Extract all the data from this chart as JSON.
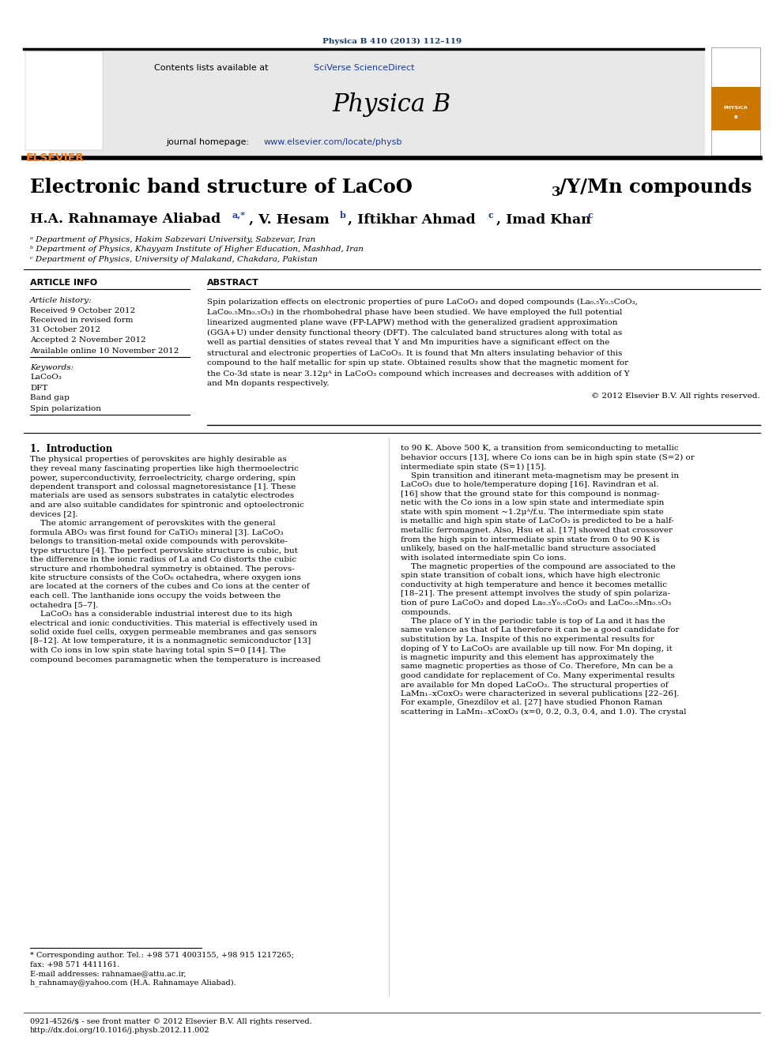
{
  "page_width": 9.92,
  "page_height": 13.23,
  "background_color": "#ffffff",
  "journal_ref": "Physica B 410 (2013) 112–119",
  "journal_ref_color": "#1a3a6b",
  "header_bg": "#e8e8e8",
  "section_article_info": "ARTICLE INFO",
  "section_abstract": "ABSTRACT",
  "article_history_label": "Article history:",
  "received1": "Received 9 October 2012",
  "received2": "Received in revised form",
  "received2b": "31 October 2012",
  "accepted": "Accepted 2 November 2012",
  "available": "Available online 10 November 2012",
  "keywords_label": "Keywords:",
  "kw1": "LaCoO₃",
  "kw2": "DFT",
  "kw3": "Band gap",
  "kw4": "Spin polarization",
  "abstract_text": "Spin polarization effects on electronic properties of pure LaCoO₃ and doped compounds (La₀.₅Y₀.₅CoO₃,\nLaCo₀.₅Mn₀.₅O₃) in the rhombohedral phase have been studied. We have employed the full potential\nlinearized augmented plane wave (FP-LAPW) method with the generalized gradient approximation\n(GGA+U) under density functional theory (DFT). The calculated band structures along with total as\nwell as partial densities of states reveal that Y and Mn impurities have a significant effect on the\nstructural and electronic properties of LaCoO₃. It is found that Mn alters insulating behavior of this\ncompound to the half metallic for spin up state. Obtained results show that the magnetic moment for\nthe Co-3d state is near 3.12μᴬ in LaCoO₃ compound which increases and decreases with addition of Y\nand Mn dopants respectively.",
  "copyright": "© 2012 Elsevier B.V. All rights reserved.",
  "affil_a": "ᵃ Department of Physics, Hakim Sabzevari University, Sabzevar, Iran",
  "affil_b": "ᵇ Department of Physics, Khayyam Institute of Higher Education, Mashhad, Iran",
  "affil_c": "ᶜ Department of Physics, University of Malakand, Chakdara, Pakistan",
  "intro_heading": "1.  Introduction",
  "intro_col1": "The physical properties of perovskites are highly desirable as\nthey reveal many fascinating properties like high thermoelectric\npower, superconductivity, ferroelectricity, charge ordering, spin\ndependent transport and colossal magnetoresistance [1]. These\nmaterials are used as sensors substrates in catalytic electrodes\nand are also suitable candidates for spintronic and optoelectronic\ndevices [2].\n    The atomic arrangement of perovskites with the general\nformula ABO₃ was first found for CaTiO₃ mineral [3]. LaCoO₃\nbelongs to transition-metal oxide compounds with perovskite-\ntype structure [4]. The perfect perovskite structure is cubic, but\nthe difference in the ionic radius of La and Co distorts the cubic\nstructure and rhombohedral symmetry is obtained. The perovs-\nkite structure consists of the CoO₆ octahedra, where oxygen ions\nare located at the corners of the cubes and Co ions at the center of\neach cell. The lanthanide ions occupy the voids between the\noctahedra [5–7].\n    LaCoO₃ has a considerable industrial interest due to its high\nelectrical and ionic conductivities. This material is effectively used in\nsolid oxide fuel cells, oxygen permeable membranes and gas sensors\n[8–12]. At low temperature, it is a nonmagnetic semiconductor [13]\nwith Co ions in low spin state having total spin S=0 [14]. The\ncompound becomes paramagnetic when the temperature is increased",
  "intro_col2": "to 90 K. Above 500 K, a transition from semiconducting to metallic\nbehavior occurs [13], where Co ions can be in high spin state (S=2) or\nintermediate spin state (S=1) [15].\n    Spin transition and itinerant meta-magnetism may be present in\nLaCoO₃ due to hole/temperature doping [16]. Ravindran et al.\n[16] show that the ground state for this compound is nonmag-\nnetic with the Co ions in a low spin state and intermediate spin\nstate with spin moment ~1.2μᴬ/f.u. The intermediate spin state\nis metallic and high spin state of LaCoO₃ is predicted to be a half-\nmetallic ferromagnet. Also, Hsu et al. [17] showed that crossover\nfrom the high spin to intermediate spin state from 0 to 90 K is\nunlikely, based on the half-metallic band structure associated\nwith isolated intermediate spin Co ions.\n    The magnetic properties of the compound are associated to the\nspin state transition of cobalt ions, which have high electronic\nconductivity at high temperature and hence it becomes metallic\n[18–21]. The present attempt involves the study of spin polariza-\ntion of pure LaCoO₃ and doped La₀.₅Y₀.₅CoO₃ and LaCo₀.₅Mn₀.₅O₃\ncompounds.\n    The place of Y in the periodic table is top of La and it has the\nsame valence as that of La therefore it can be a good candidate for\nsubstitution by La. Inspite of this no experimental results for\ndoping of Y to LaCoO₃ are available up till now. For Mn doping, it\nis magnetic impurity and this element has approximately the\nsame magnetic properties as those of Co. Therefore, Mn can be a\ngood candidate for replacement of Co. Many experimental results\nare available for Mn doped LaCoO₃. The structural properties of\nLaMn₁₋xCoxO₃ were characterized in several publications [22–26].\nFor example, Gnezdilov et al. [27] have studied Phonon Raman\nscattering in LaMn₁₋xCoxO₃ (x=0, 0.2, 0.3, 0.4, and 1.0). The crystal",
  "footnote_lines": [
    "* Corresponding author. Tel.: +98 571 4003155, +98 915 1217265;",
    "fax: +98 571 4411161.",
    "E-mail addresses: rahnamae@attu.ac.ir,",
    "h_rahnamay@yahoo.com (H.A. Rahnamaye Aliabad)."
  ],
  "footer_lines": [
    "0921-4526/$ - see front matter © 2012 Elsevier B.V. All rights reserved.",
    "http://dx.doi.org/10.1016/j.physb.2012.11.002"
  ],
  "elsevier_orange": "#f47920",
  "link_color": "#1a3a9e",
  "black": "#000000",
  "light_gray": "#cccccc"
}
